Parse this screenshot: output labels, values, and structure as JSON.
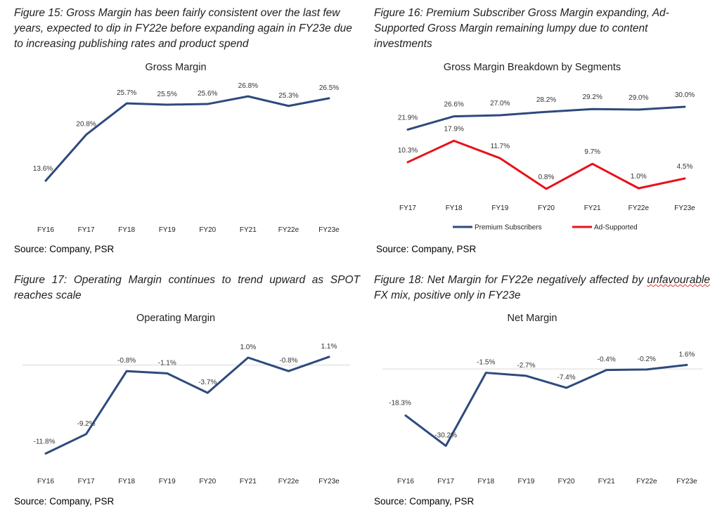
{
  "figures": {
    "fig15": {
      "title": "Figure 15: Gross Margin has been fairly consistent over the last few years, expected to dip in FY22e before expanding again in FY23e due to increasing publishing rates and product spend",
      "source": "Source: Company, PSR"
    },
    "fig16": {
      "title": "Figure 16: Premium Subscriber Gross Margin expanding, Ad-Supported Gross Margin remaining lumpy due to content investments",
      "source": "Source: Company, PSR"
    },
    "fig17": {
      "title": "Figure 17: Operating Margin continues to trend upward as SPOT reaches scale",
      "source": "Source: Company, PSR"
    },
    "fig18": {
      "title_part1": "Figure 18: Net Margin for FY22e negatively affected by ",
      "title_squiggle": "unfavourable",
      "title_part2": " FX mix, positive only in FY23e",
      "source": "Source: Company, PSR"
    }
  },
  "colors": {
    "navy": "#2e4a7d",
    "red": "#e8121b",
    "zero_line": "#d9d9d9"
  },
  "chart_data": [
    {
      "id": "gross",
      "type": "line",
      "title": "Gross Margin",
      "categories": [
        "FY16",
        "FY17",
        "FY18",
        "FY19",
        "FY20",
        "FY21",
        "FY22e",
        "FY23e"
      ],
      "series": [
        {
          "name": "Gross Margin",
          "values": [
            13.6,
            20.8,
            25.7,
            25.5,
            25.6,
            26.8,
            25.3,
            26.5
          ],
          "labels": [
            "13.6%",
            "20.8%",
            "25.7%",
            "25.5%",
            "25.6%",
            "26.8%",
            "25.3%",
            "26.5%"
          ]
        }
      ],
      "ylim": [
        10,
        30
      ],
      "grid": false,
      "legend": "none"
    },
    {
      "id": "segments",
      "type": "line",
      "title": "Gross Margin Breakdown by Segments",
      "categories": [
        "FY17",
        "FY18",
        "FY19",
        "FY20",
        "FY21",
        "FY22e",
        "FY23e"
      ],
      "series": [
        {
          "name": "Premium Subscribers",
          "values": [
            21.9,
            26.6,
            27.0,
            28.2,
            29.2,
            29.0,
            30.0
          ],
          "labels": [
            "21.9%",
            "26.6%",
            "27.0%",
            "28.2%",
            "29.2%",
            "29.0%",
            "30.0%"
          ]
        },
        {
          "name": "Ad-Supported",
          "values": [
            10.3,
            17.9,
            11.7,
            0.8,
            9.7,
            1.0,
            4.5
          ],
          "labels": [
            "10.3%",
            "17.9%",
            "11.7%",
            "0.8%",
            "9.7%",
            "1.0%",
            "4.5%"
          ]
        }
      ],
      "ylim": [
        -2,
        38
      ],
      "grid": false,
      "legend": "bottom"
    },
    {
      "id": "operating",
      "type": "line",
      "title": "Operating Margin",
      "categories": [
        "FY16",
        "FY17",
        "FY18",
        "FY19",
        "FY20",
        "FY21",
        "FY22e",
        "FY23e"
      ],
      "series": [
        {
          "name": "Operating Margin",
          "values": [
            -11.8,
            -9.2,
            -0.8,
            -1.1,
            -3.7,
            1.0,
            -0.8,
            1.1
          ],
          "labels": [
            "-11.8%",
            "-9.2%",
            "-0.8%",
            "-1.1%",
            "-3.7%",
            "1.0%",
            "-0.8%",
            "1.1%"
          ]
        }
      ],
      "ylim": [
        -14,
        4
      ],
      "grid": false,
      "legend": "none"
    },
    {
      "id": "net",
      "type": "line",
      "title": "Net Margin",
      "categories": [
        "FY16",
        "FY17",
        "FY18",
        "FY19",
        "FY20",
        "FY21",
        "FY22e",
        "FY23e"
      ],
      "series": [
        {
          "name": "Net Margin",
          "values": [
            -18.3,
            -30.2,
            -1.5,
            -2.7,
            -7.4,
            -0.4,
            -0.2,
            1.6
          ],
          "labels": [
            "-18.3%",
            "-30.2%",
            "-1.5%",
            "-2.7%",
            "-7.4%",
            "-0.4%",
            "-0.2%",
            "1.6%"
          ]
        }
      ],
      "ylim": [
        -35,
        5
      ],
      "grid": false,
      "legend": "none"
    }
  ]
}
